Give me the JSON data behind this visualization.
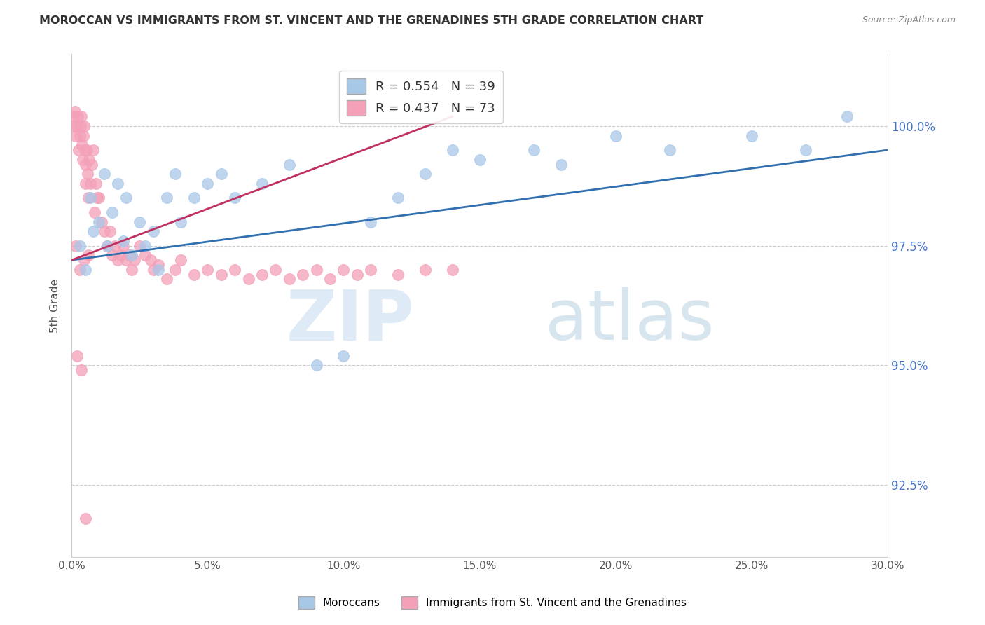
{
  "title": "MOROCCAN VS IMMIGRANTS FROM ST. VINCENT AND THE GRENADINES 5TH GRADE CORRELATION CHART",
  "source": "Source: ZipAtlas.com",
  "ylabel": "5th Grade",
  "xlim": [
    0.0,
    30.0
  ],
  "ylim": [
    91.0,
    101.5
  ],
  "yticks": [
    92.5,
    95.0,
    97.5,
    100.0
  ],
  "xticks": [
    0.0,
    5.0,
    10.0,
    15.0,
    20.0,
    25.0,
    30.0
  ],
  "blue_R": 0.554,
  "blue_N": 39,
  "pink_R": 0.437,
  "pink_N": 73,
  "legend_labels": [
    "Moroccans",
    "Immigrants from St. Vincent and the Grenadines"
  ],
  "blue_color": "#a8c8e8",
  "pink_color": "#f4a0b8",
  "blue_line_color": "#3070b0",
  "pink_line_color": "#c03060",
  "blue_scatter_x": [
    0.3,
    0.5,
    0.7,
    0.8,
    1.0,
    1.2,
    1.3,
    1.5,
    1.7,
    1.9,
    2.0,
    2.2,
    2.5,
    2.7,
    3.0,
    3.2,
    3.5,
    3.8,
    4.0,
    4.5,
    5.0,
    5.5,
    6.0,
    7.0,
    8.0,
    9.0,
    10.0,
    11.0,
    12.0,
    13.0,
    14.0,
    15.0,
    17.0,
    18.0,
    20.0,
    22.0,
    25.0,
    27.0,
    28.5
  ],
  "blue_scatter_y": [
    97.5,
    97.0,
    98.5,
    97.8,
    98.0,
    99.0,
    97.5,
    98.2,
    98.8,
    97.6,
    98.5,
    97.3,
    98.0,
    97.5,
    97.8,
    97.0,
    98.5,
    99.0,
    98.0,
    98.5,
    98.8,
    99.0,
    98.5,
    98.8,
    99.2,
    95.0,
    95.2,
    98.0,
    98.5,
    99.0,
    99.5,
    99.3,
    99.5,
    99.2,
    99.8,
    99.5,
    99.8,
    99.5,
    100.2
  ],
  "pink_scatter_x": [
    0.05,
    0.1,
    0.12,
    0.15,
    0.2,
    0.22,
    0.25,
    0.3,
    0.32,
    0.35,
    0.38,
    0.4,
    0.42,
    0.45,
    0.48,
    0.5,
    0.52,
    0.55,
    0.58,
    0.6,
    0.65,
    0.7,
    0.75,
    0.8,
    0.85,
    0.9,
    0.95,
    1.0,
    1.1,
    1.2,
    1.3,
    1.4,
    1.5,
    1.6,
    1.7,
    1.8,
    1.9,
    2.0,
    2.1,
    2.2,
    2.3,
    2.5,
    2.7,
    2.9,
    3.0,
    3.2,
    3.5,
    3.8,
    4.0,
    4.5,
    5.0,
    5.5,
    6.0,
    6.5,
    7.0,
    7.5,
    8.0,
    8.5,
    9.0,
    9.5,
    10.0,
    10.5,
    11.0,
    12.0,
    13.0,
    14.0,
    0.15,
    0.3,
    0.45,
    0.6,
    0.2,
    0.35,
    0.5
  ],
  "pink_scatter_y": [
    100.2,
    100.0,
    100.3,
    99.8,
    100.0,
    100.2,
    99.5,
    99.8,
    100.0,
    100.2,
    99.6,
    99.3,
    99.8,
    100.0,
    99.5,
    98.8,
    99.2,
    99.5,
    99.0,
    98.5,
    99.3,
    98.8,
    99.2,
    99.5,
    98.2,
    98.8,
    98.5,
    98.5,
    98.0,
    97.8,
    97.5,
    97.8,
    97.3,
    97.5,
    97.2,
    97.3,
    97.5,
    97.2,
    97.3,
    97.0,
    97.2,
    97.5,
    97.3,
    97.2,
    97.0,
    97.1,
    96.8,
    97.0,
    97.2,
    96.9,
    97.0,
    96.9,
    97.0,
    96.8,
    96.9,
    97.0,
    96.8,
    96.9,
    97.0,
    96.8,
    97.0,
    96.9,
    97.0,
    96.9,
    97.0,
    97.0,
    97.5,
    97.0,
    97.2,
    97.3,
    95.2,
    94.9,
    91.8
  ],
  "blue_line_x": [
    0.0,
    30.0
  ],
  "blue_line_y": [
    97.2,
    99.5
  ],
  "pink_line_x": [
    0.0,
    14.0
  ],
  "pink_line_y": [
    97.2,
    100.2
  ]
}
